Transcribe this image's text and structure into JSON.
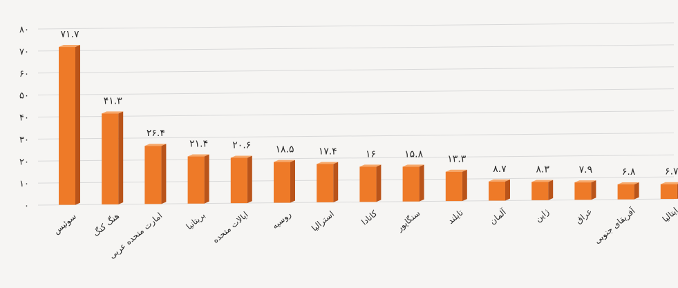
{
  "chart_data": {
    "type": "bar",
    "title": "",
    "xlabel": "",
    "ylabel": "",
    "ylim": [
      0,
      80
    ],
    "y_ticks": [
      "۰",
      "۱۰",
      "۲۰",
      "۳۰",
      "۴۰",
      "۵۰",
      "۶۰",
      "۷۰",
      "۸۰"
    ],
    "grid": true,
    "categories": [
      "سوئیس",
      "هنگ کنگ",
      "امارت متحده عربی",
      "بریتانیا",
      "ایالات متحده",
      "روسیه",
      "استرالیا",
      "کانادا",
      "سنگاپور",
      "تایلند",
      "آلمان",
      "ژاپن",
      "عراق",
      "آفریقای جنوبی",
      "ایتالیا"
    ],
    "values": [
      71.7,
      41.3,
      26.4,
      21.4,
      20.6,
      18.5,
      17.4,
      16,
      15.8,
      13.3,
      8.7,
      8.3,
      7.9,
      6.8,
      6.7
    ],
    "value_labels": [
      "۷۱.۷",
      "۴۱.۳",
      "۲۶.۴",
      "۲۱.۴",
      "۲۰.۶",
      "۱۸.۵",
      "۱۷.۴",
      "۱۶",
      "۱۵.۸",
      "۱۳.۳",
      "۸.۷",
      "۸.۳",
      "۷.۹",
      "۶.۸",
      "۶.۷"
    ],
    "colors": {
      "bar_front": "#ee7a28",
      "bar_side": "#b9541a",
      "bar_top": "#f7a86a",
      "grid": "#d9d9d9",
      "text": "#2b2b2b"
    }
  }
}
